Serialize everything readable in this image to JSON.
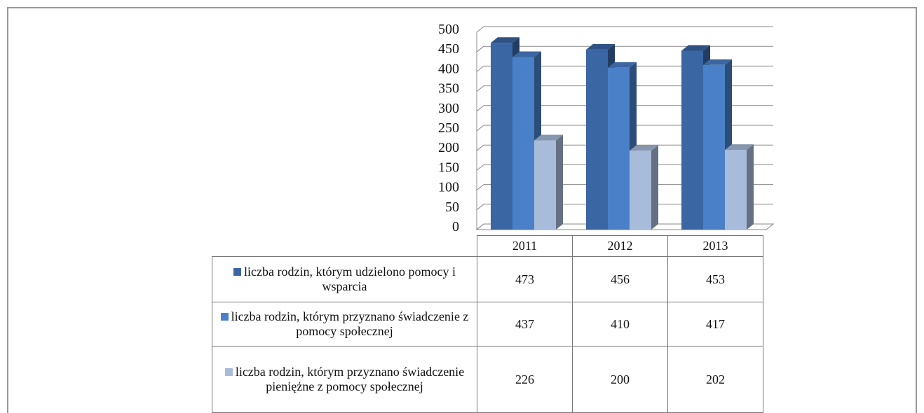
{
  "chart_data": {
    "type": "bar3d",
    "categories": [
      "2011",
      "2012",
      "2013"
    ],
    "series": [
      {
        "name": "liczba rodzin, którym udzielono pomocy i wsparcia",
        "color": "#3a66a4",
        "values": [
          473,
          456,
          453
        ]
      },
      {
        "name": "liczba rodzin, którym przyznano świadczenie z pomocy społecznej",
        "color": "#4a80c8",
        "values": [
          437,
          410,
          417
        ]
      },
      {
        "name": "liczba rodzin, którym przyznano świadczenie pieniężne z pomocy społecznej",
        "color": "#a9bbdb",
        "values": [
          226,
          200,
          202
        ]
      }
    ],
    "ylim": [
      0,
      500
    ],
    "yticks": [
      0,
      50,
      100,
      150,
      200,
      250,
      300,
      350,
      400,
      450,
      500
    ],
    "grid": true,
    "legend": "table"
  }
}
